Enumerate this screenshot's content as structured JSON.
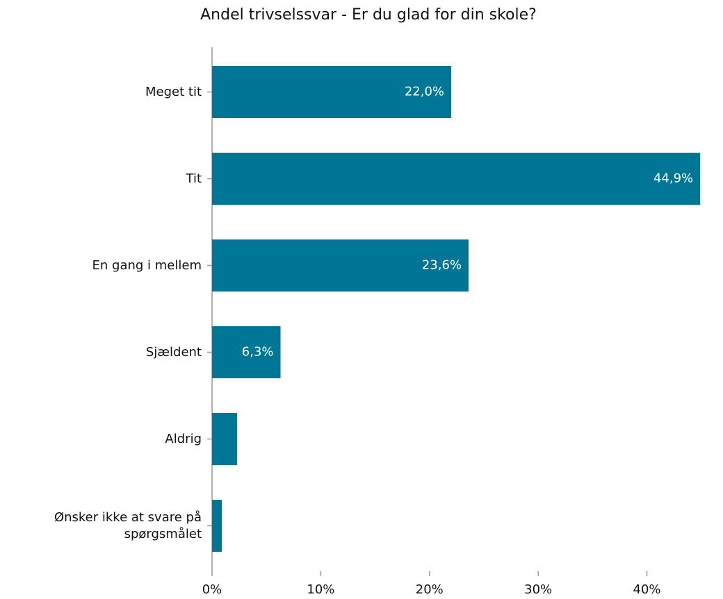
{
  "chart_data": {
    "type": "bar",
    "orientation": "horizontal",
    "title": "Andel trivselssvar - Er du glad for din skole?",
    "categories": [
      "Meget tit",
      "Tit",
      "En gang i mellem",
      "Sjældent",
      "Aldrig",
      "Ønsker ikke at svare på\nspørgsmålet"
    ],
    "values": [
      22.0,
      44.9,
      23.6,
      6.3,
      2.3,
      0.9
    ],
    "value_labels": [
      "22,0%",
      "44,9%",
      "23,6%",
      "6,3%",
      null,
      null
    ],
    "color": "#007697",
    "xlim": [
      0,
      47
    ],
    "xticks": [
      {
        "value": 0,
        "label": "0%"
      },
      {
        "value": 10,
        "label": "10%"
      },
      {
        "value": 20,
        "label": "20%"
      },
      {
        "value": 30,
        "label": "30%"
      },
      {
        "value": 40,
        "label": "40%"
      }
    ],
    "grid": false
  }
}
